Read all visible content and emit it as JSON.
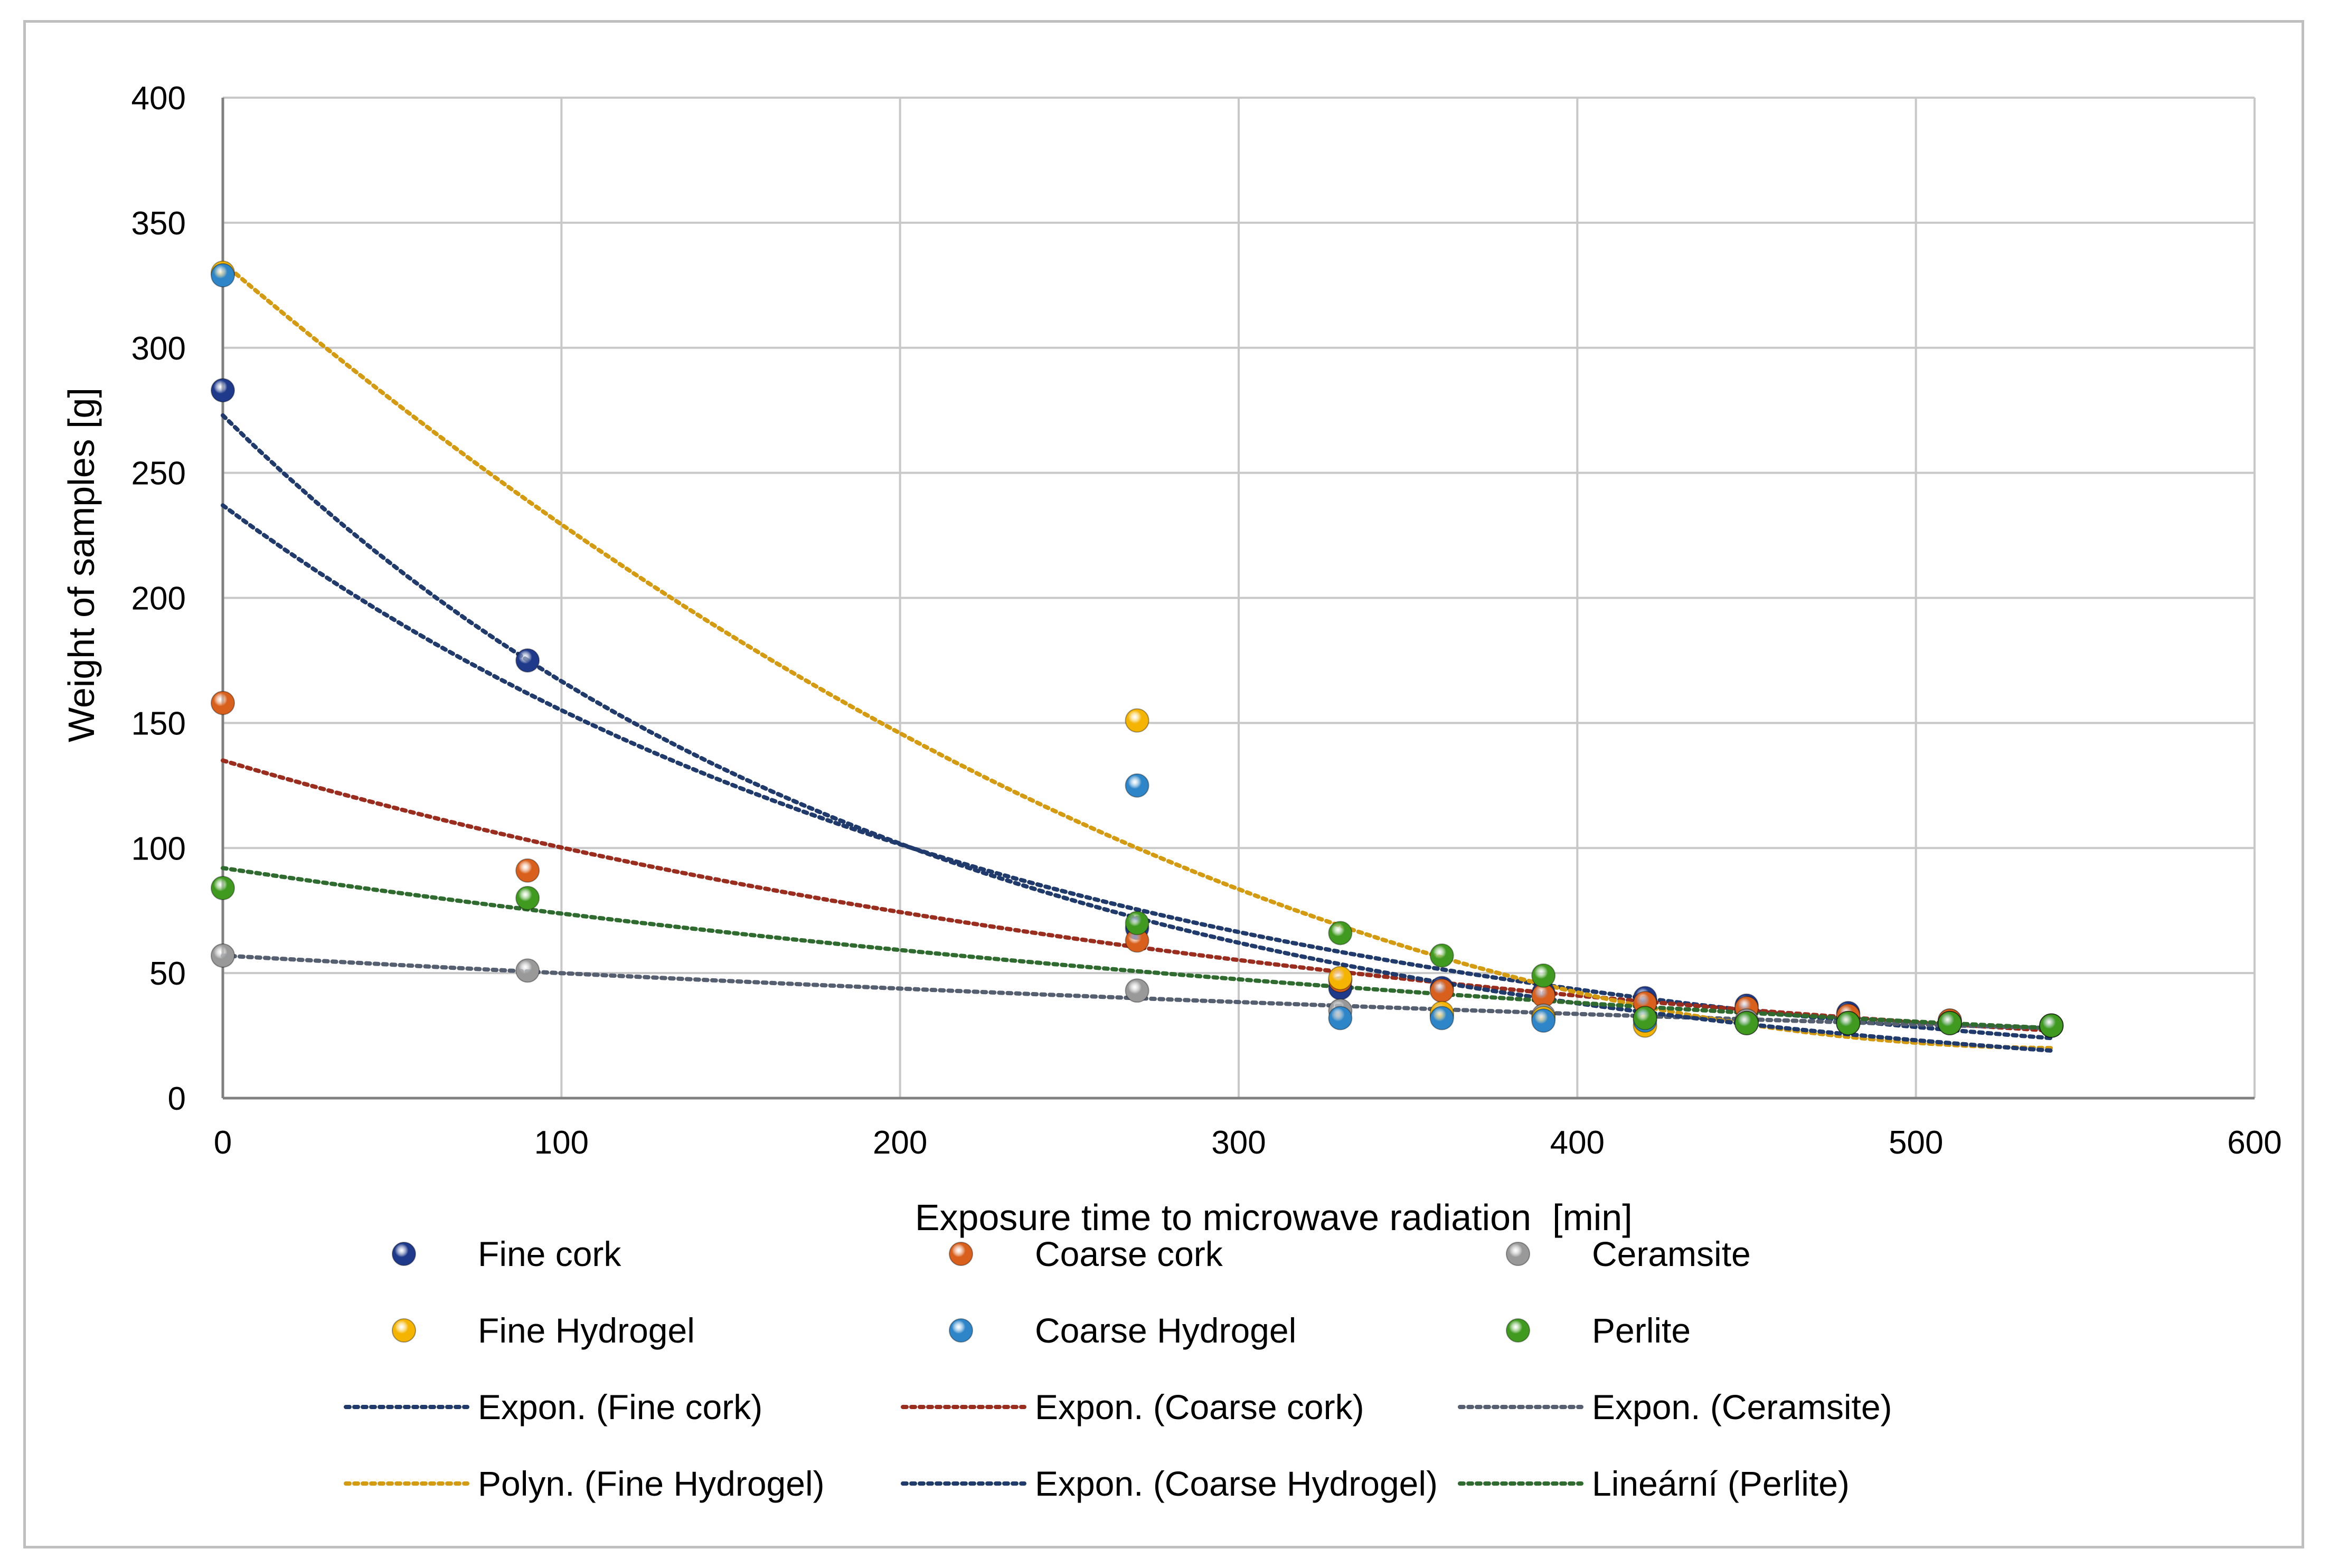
{
  "chart_data": {
    "type": "scatter",
    "title": "",
    "xlabel": "Exposure time to microwave radiation",
    "xlabel_unit": "[min]",
    "ylabel": "Weight of samples [g]",
    "xlim": [
      0,
      600
    ],
    "ylim": [
      0,
      400
    ],
    "xticks": [
      "0",
      "100",
      "200",
      "300",
      "400",
      "500",
      "600"
    ],
    "yticks": [
      "0",
      "50",
      "100",
      "150",
      "200",
      "250",
      "300",
      "350",
      "400"
    ],
    "grid": true,
    "legend_position": "bottom",
    "series": [
      {
        "name": "Fine cork",
        "color": "#1f3a8a",
        "points": [
          [
            0,
            283
          ],
          [
            90,
            175
          ],
          [
            270,
            68
          ],
          [
            330,
            44
          ],
          [
            360,
            44
          ],
          [
            390,
            42
          ],
          [
            420,
            40
          ],
          [
            450,
            37
          ],
          [
            480,
            34
          ],
          [
            510,
            31
          ],
          [
            540,
            29
          ]
        ]
      },
      {
        "name": "Coarse cork",
        "color": "#d9601c",
        "points": [
          [
            0,
            158
          ],
          [
            90,
            91
          ],
          [
            270,
            63
          ],
          [
            330,
            47
          ],
          [
            360,
            43
          ],
          [
            390,
            41
          ],
          [
            420,
            38
          ],
          [
            450,
            36
          ],
          [
            480,
            33
          ],
          [
            510,
            31
          ],
          [
            540,
            29
          ]
        ]
      },
      {
        "name": "Ceramsite",
        "color": "#999999",
        "points": [
          [
            0,
            57
          ],
          [
            90,
            51
          ],
          [
            270,
            43
          ],
          [
            330,
            35
          ],
          [
            360,
            33
          ],
          [
            390,
            33
          ],
          [
            420,
            32
          ],
          [
            450,
            31
          ],
          [
            480,
            30
          ],
          [
            510,
            30
          ],
          [
            540,
            29
          ]
        ]
      },
      {
        "name": "Fine Hydrogel",
        "color": "#f5b400",
        "points": [
          [
            0,
            330
          ],
          [
            270,
            151
          ],
          [
            330,
            48
          ],
          [
            360,
            34
          ],
          [
            390,
            32
          ],
          [
            420,
            29
          ],
          [
            450,
            30
          ],
          [
            480,
            30
          ],
          [
            510,
            30
          ],
          [
            540,
            29
          ]
        ]
      },
      {
        "name": "Coarse Hydrogel",
        "color": "#2e86c9",
        "points": [
          [
            0,
            329
          ],
          [
            270,
            125
          ],
          [
            330,
            32
          ],
          [
            360,
            32
          ],
          [
            390,
            31
          ],
          [
            420,
            31
          ],
          [
            450,
            30
          ],
          [
            480,
            30
          ],
          [
            510,
            30
          ],
          [
            540,
            29
          ]
        ]
      },
      {
        "name": "Perlite",
        "color": "#3f9a1f",
        "points": [
          [
            0,
            84
          ],
          [
            90,
            80
          ],
          [
            270,
            70
          ],
          [
            330,
            66
          ],
          [
            360,
            57
          ],
          [
            390,
            49
          ],
          [
            420,
            32
          ],
          [
            450,
            30
          ],
          [
            480,
            30
          ],
          [
            510,
            30
          ],
          [
            540,
            29
          ]
        ]
      }
    ],
    "trendlines": [
      {
        "name": "Expon. (Fine cork)",
        "color": "#1f3a6b",
        "type": "exponential",
        "x_range": [
          0,
          540
        ],
        "start_y": 237,
        "end_y": 24
      },
      {
        "name": "Expon. (Coarse cork)",
        "color": "#9b2d1f",
        "type": "exponential",
        "x_range": [
          0,
          540
        ],
        "start_y": 135,
        "end_y": 27
      },
      {
        "name": "Expon. (Ceramsite)",
        "color": "#555f70",
        "type": "exponential",
        "x_range": [
          0,
          540
        ],
        "start_y": 57,
        "end_y": 28
      },
      {
        "name": "Polyn. (Fine Hydrogel)",
        "color": "#d49a10",
        "type": "polynomial",
        "x_range": [
          0,
          540
        ],
        "start_y": 334,
        "mid_x": 270,
        "mid_y": 100,
        "end_y": 20
      },
      {
        "name": "Expon. (Coarse Hydrogel)",
        "color": "#1f3a6b",
        "type": "exponential",
        "x_range": [
          0,
          540
        ],
        "start_y": 273,
        "end_y": 19
      },
      {
        "name": "Lineární (Perlite)",
        "color": "#2f6b2f",
        "type": "exponential",
        "x_range": [
          0,
          540
        ],
        "start_y": 92,
        "end_y": 28
      }
    ],
    "legend": {
      "row1": [
        "Fine cork",
        "Coarse cork",
        "Ceramsite"
      ],
      "row2": [
        "Fine Hydrogel",
        "Coarse Hydrogel",
        "Perlite"
      ],
      "row3": [
        "Expon. (Fine cork)",
        "Expon. (Coarse cork)",
        "Expon. (Ceramsite)"
      ],
      "row4": [
        "Polyn. (Fine Hydrogel)",
        "Expon. (Coarse Hydrogel)",
        "Lineární (Perlite)"
      ]
    }
  }
}
